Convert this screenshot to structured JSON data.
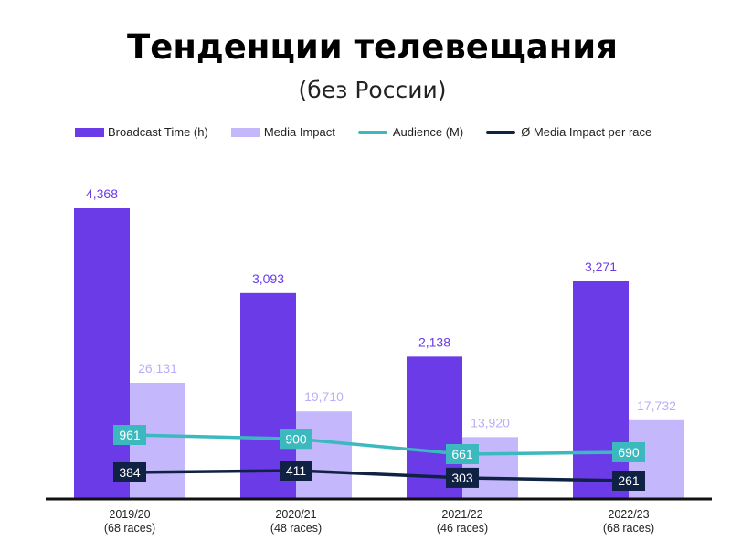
{
  "chart_data": {
    "type": "bar",
    "title": "Тенденции телевещания",
    "subtitle": "(без России)",
    "categories": [
      "2019/20\n(68 races)",
      "2020/21\n(48 races)",
      "2021/22\n(46 races)",
      "2022/23\n(68 races)"
    ],
    "series": [
      {
        "name": "Broadcast Time (h)",
        "kind": "bar",
        "color": "#6b3be8",
        "label_color": "#6b3be8",
        "values": [
          4368,
          3093,
          2138,
          3271
        ],
        "labels": [
          "4,368",
          "3,093",
          "2,138",
          "3,271"
        ]
      },
      {
        "name": "Media Impact",
        "kind": "bar",
        "color": "#c4b7fb",
        "label_color": "#b8aefa",
        "values": [
          26131,
          19710,
          13920,
          17732
        ],
        "labels": [
          "26,131",
          "19,710",
          "13,920",
          "17,732"
        ]
      },
      {
        "name": "Audience (M)",
        "kind": "line",
        "color": "#3cb9bf",
        "values": [
          961,
          900,
          661,
          690
        ],
        "labels": [
          "961",
          "900",
          "661",
          "690"
        ]
      },
      {
        "name": "Ø Media Impact per race",
        "kind": "line",
        "color": "#0f2243",
        "values": [
          384,
          411,
          303,
          261
        ],
        "labels": [
          "384",
          "411",
          "303",
          "261"
        ]
      }
    ],
    "axis_baseline_color": "#111111",
    "grid": false,
    "legend_position": "top-left"
  }
}
